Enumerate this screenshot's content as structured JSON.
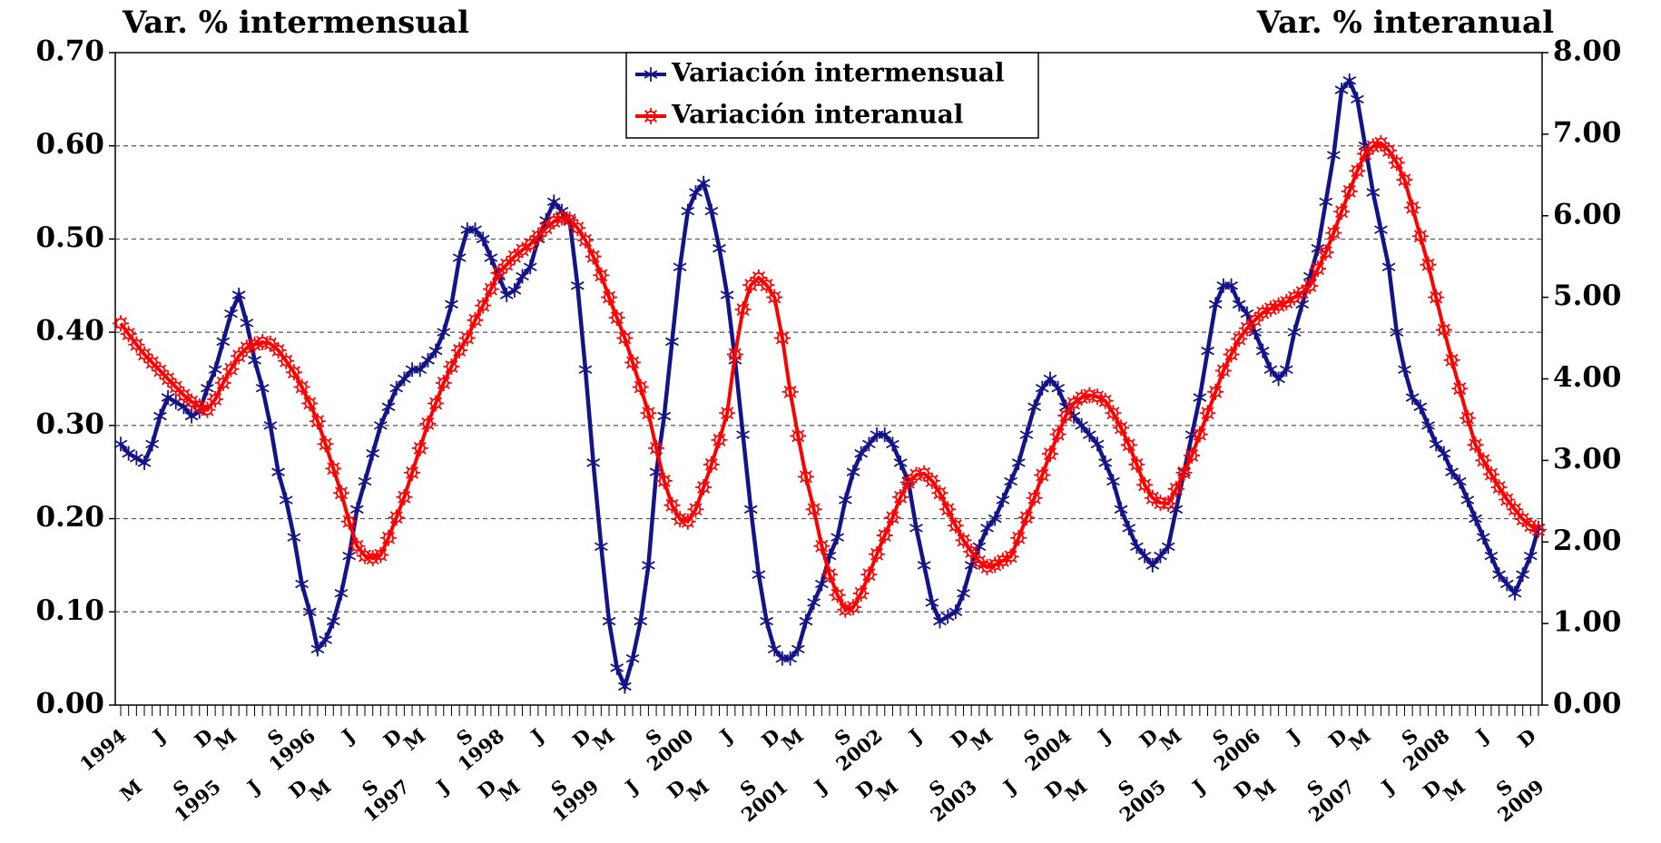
{
  "chart_data": {
    "type": "line",
    "y_label": "Var. %  intermensual",
    "y2_label": "Var. % interanual",
    "categories": [
      "1994",
      null,
      "M",
      null,
      null,
      "J",
      null,
      null,
      "S",
      null,
      null,
      "D",
      "1995",
      null,
      "M",
      null,
      null,
      "J",
      null,
      null,
      "S",
      null,
      null,
      "D",
      "1996",
      null,
      "M",
      null,
      null,
      "J",
      null,
      null,
      "S",
      null,
      null,
      "D",
      "1997",
      null,
      "M",
      null,
      null,
      "J",
      null,
      null,
      "S",
      null,
      null,
      "D",
      "1998",
      null,
      "M",
      null,
      null,
      "J",
      null,
      null,
      "S",
      null,
      null,
      "D",
      "1999",
      null,
      "M",
      null,
      null,
      "J",
      null,
      null,
      "S",
      null,
      null,
      "D",
      "2000",
      null,
      "M",
      null,
      null,
      "J",
      null,
      null,
      "S",
      null,
      null,
      "D",
      "2001",
      null,
      "M",
      null,
      null,
      "J",
      null,
      null,
      "S",
      null,
      null,
      "D",
      "2002",
      null,
      "M",
      null,
      null,
      "J",
      null,
      null,
      "S",
      null,
      null,
      "D",
      "2003",
      null,
      "M",
      null,
      null,
      "J",
      null,
      null,
      "S",
      null,
      null,
      "D",
      "2004",
      null,
      "M",
      null,
      null,
      "J",
      null,
      null,
      "S",
      null,
      null,
      "D",
      "2005",
      null,
      "M",
      null,
      null,
      "J",
      null,
      null,
      "S",
      null,
      null,
      "D",
      "2006",
      null,
      "M",
      null,
      null,
      "J",
      null,
      null,
      "S",
      null,
      null,
      "D",
      "2007",
      null,
      "M",
      null,
      null,
      "J",
      null,
      null,
      "S",
      null,
      null,
      "D",
      "2008",
      null,
      "M",
      null,
      null,
      "J",
      null,
      null,
      "S",
      null,
      null,
      "D",
      "2009"
    ],
    "series": [
      {
        "name": "Variación intermensual",
        "color": "#141488",
        "marker": "star",
        "values": [
          0.28,
          0.27,
          0.265,
          0.26,
          0.28,
          0.31,
          0.33,
          0.325,
          0.32,
          0.31,
          0.315,
          0.34,
          0.36,
          0.39,
          0.42,
          0.44,
          0.41,
          0.37,
          0.34,
          0.3,
          0.25,
          0.22,
          0.18,
          0.13,
          0.1,
          0.06,
          0.07,
          0.09,
          0.12,
          0.16,
          0.21,
          0.24,
          0.27,
          0.3,
          0.32,
          0.34,
          0.35,
          0.36,
          0.36,
          0.37,
          0.38,
          0.4,
          0.43,
          0.48,
          0.51,
          0.51,
          0.5,
          0.48,
          0.46,
          0.44,
          0.445,
          0.46,
          0.47,
          0.5,
          0.52,
          0.54,
          0.53,
          0.52,
          0.45,
          0.36,
          0.26,
          0.17,
          0.09,
          0.04,
          0.02,
          0.05,
          0.09,
          0.15,
          0.25,
          0.31,
          0.39,
          0.47,
          0.53,
          0.55,
          0.56,
          0.53,
          0.49,
          0.44,
          0.37,
          0.29,
          0.21,
          0.14,
          0.09,
          0.06,
          0.05,
          0.05,
          0.06,
          0.09,
          0.11,
          0.13,
          0.16,
          0.18,
          0.22,
          0.25,
          0.27,
          0.28,
          0.29,
          0.29,
          0.28,
          0.26,
          0.24,
          0.19,
          0.15,
          0.11,
          0.09,
          0.095,
          0.1,
          0.12,
          0.15,
          0.17,
          0.19,
          0.2,
          0.22,
          0.24,
          0.26,
          0.29,
          0.32,
          0.34,
          0.35,
          0.34,
          0.32,
          0.31,
          0.3,
          0.29,
          0.28,
          0.26,
          0.24,
          0.21,
          0.19,
          0.17,
          0.16,
          0.15,
          0.16,
          0.17,
          0.21,
          0.25,
          0.29,
          0.33,
          0.38,
          0.43,
          0.45,
          0.45,
          0.43,
          0.42,
          0.4,
          0.38,
          0.36,
          0.35,
          0.36,
          0.4,
          0.43,
          0.46,
          0.49,
          0.54,
          0.59,
          0.66,
          0.67,
          0.65,
          0.6,
          0.55,
          0.51,
          0.47,
          0.4,
          0.36,
          0.33,
          0.32,
          0.3,
          0.28,
          0.27,
          0.25,
          0.24,
          0.22,
          0.2,
          0.18,
          0.16,
          0.14,
          0.13,
          0.12,
          0.14,
          0.16,
          0.19
        ]
      },
      {
        "name": "Variación interanual",
        "color": "#ff0000",
        "marker": "sun",
        "axis": "y2",
        "values": [
          4.68,
          4.55,
          4.42,
          4.3,
          4.2,
          4.1,
          4.0,
          3.9,
          3.8,
          3.72,
          3.66,
          3.62,
          3.75,
          3.95,
          4.12,
          4.28,
          4.38,
          4.42,
          4.45,
          4.43,
          4.35,
          4.22,
          4.08,
          3.9,
          3.7,
          3.48,
          3.2,
          2.9,
          2.6,
          2.25,
          1.95,
          1.83,
          1.8,
          1.84,
          2.05,
          2.3,
          2.55,
          2.85,
          3.15,
          3.45,
          3.7,
          3.95,
          4.15,
          4.35,
          4.5,
          4.72,
          4.9,
          5.1,
          5.3,
          5.4,
          5.5,
          5.58,
          5.65,
          5.75,
          5.85,
          5.93,
          5.98,
          5.95,
          5.85,
          5.7,
          5.5,
          5.27,
          5.0,
          4.75,
          4.5,
          4.2,
          3.9,
          3.58,
          3.15,
          2.75,
          2.45,
          2.28,
          2.25,
          2.4,
          2.67,
          2.95,
          3.25,
          3.58,
          4.3,
          4.85,
          5.15,
          5.24,
          5.15,
          5.0,
          4.5,
          3.84,
          3.3,
          2.8,
          2.4,
          1.95,
          1.6,
          1.35,
          1.17,
          1.2,
          1.37,
          1.6,
          1.85,
          2.08,
          2.3,
          2.55,
          2.73,
          2.82,
          2.84,
          2.75,
          2.6,
          2.4,
          2.2,
          2.02,
          1.88,
          1.76,
          1.69,
          1.72,
          1.77,
          1.82,
          2.05,
          2.3,
          2.54,
          2.82,
          3.08,
          3.32,
          3.55,
          3.7,
          3.77,
          3.8,
          3.78,
          3.73,
          3.58,
          3.4,
          3.19,
          2.95,
          2.7,
          2.54,
          2.48,
          2.47,
          2.65,
          2.85,
          3.06,
          3.32,
          3.58,
          3.84,
          4.1,
          4.3,
          4.49,
          4.62,
          4.72,
          4.81,
          4.86,
          4.9,
          4.94,
          5.0,
          5.06,
          5.14,
          5.35,
          5.55,
          5.79,
          6.05,
          6.3,
          6.55,
          6.76,
          6.85,
          6.89,
          6.8,
          6.65,
          6.44,
          6.1,
          5.75,
          5.4,
          5.0,
          4.6,
          4.23,
          3.88,
          3.52,
          3.19,
          3.0,
          2.83,
          2.67,
          2.52,
          2.4,
          2.28,
          2.2,
          2.15
        ]
      }
    ],
    "ylim": [
      0,
      0.7
    ],
    "yticks": [
      {
        "value": 0,
        "label": "0.00"
      },
      {
        "value": 0.1,
        "label": "0.10"
      },
      {
        "value": 0.2,
        "label": "0.20"
      },
      {
        "value": 0.3,
        "label": "0.30"
      },
      {
        "value": 0.4,
        "label": "0.40"
      },
      {
        "value": 0.5,
        "label": "0.50"
      },
      {
        "value": 0.6,
        "label": "0.60"
      },
      {
        "value": 0.7,
        "label": "0.70"
      }
    ],
    "y2lim": [
      0,
      8
    ],
    "y2ticks": [
      {
        "value": 0,
        "label": "0.00"
      },
      {
        "value": 1,
        "label": "1.00"
      },
      {
        "value": 2,
        "label": "2.00"
      },
      {
        "value": 3,
        "label": "3.00"
      },
      {
        "value": 4,
        "label": "4.00"
      },
      {
        "value": 5,
        "label": "5.00"
      },
      {
        "value": 6,
        "label": "6.00"
      },
      {
        "value": 7,
        "label": "7.00"
      },
      {
        "value": 8,
        "label": "8.00"
      }
    ],
    "grid": true,
    "legend": "top"
  }
}
